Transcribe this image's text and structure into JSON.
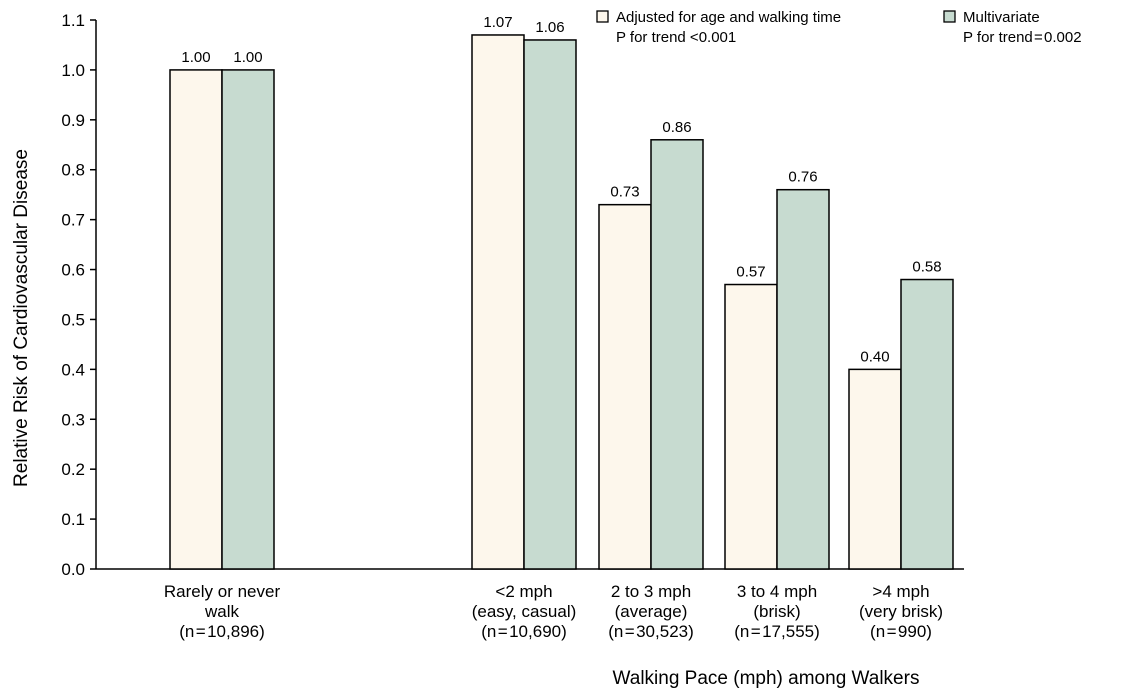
{
  "chart_data": {
    "type": "bar",
    "title": "",
    "xlabel": "Walking Pace (mph) among Walkers",
    "ylabel": "Relative Risk of Cardiovascular Disease",
    "ylim": [
      0.0,
      1.1
    ],
    "yticks": [
      "0.0",
      "0.1",
      "0.2",
      "0.3",
      "0.4",
      "0.5",
      "0.6",
      "0.7",
      "0.8",
      "0.9",
      "1.0",
      "1.1"
    ],
    "grid": false,
    "legend_position": "top-right",
    "categories": [
      [
        "Rarely or never",
        "walk",
        "(n = 10,896)"
      ],
      [
        "<2 mph",
        "(easy, casual)",
        "(n = 10,690)"
      ],
      [
        "2 to 3 mph",
        "(average)",
        "(n = 30,523)"
      ],
      [
        "3 to 4 mph",
        "(brisk)",
        "(n = 17,555)"
      ],
      [
        ">4 mph",
        "(very brisk)",
        "(n = 990)"
      ]
    ],
    "series": [
      {
        "name": "Adjusted for age and walking time",
        "note": "P for trend <0.001",
        "color": "#fdf7ec",
        "values": [
          1.0,
          1.07,
          0.73,
          0.57,
          0.4
        ],
        "labels": [
          "1.00",
          "1.07",
          "0.73",
          "0.57",
          "0.40"
        ]
      },
      {
        "name": "Multivariate",
        "note": "P for trend = 0.002",
        "color": "#c7dbd0",
        "values": [
          1.0,
          1.06,
          0.86,
          0.76,
          0.58
        ],
        "labels": [
          "1.00",
          "1.06",
          "0.86",
          "0.76",
          "0.58"
        ]
      }
    ]
  }
}
